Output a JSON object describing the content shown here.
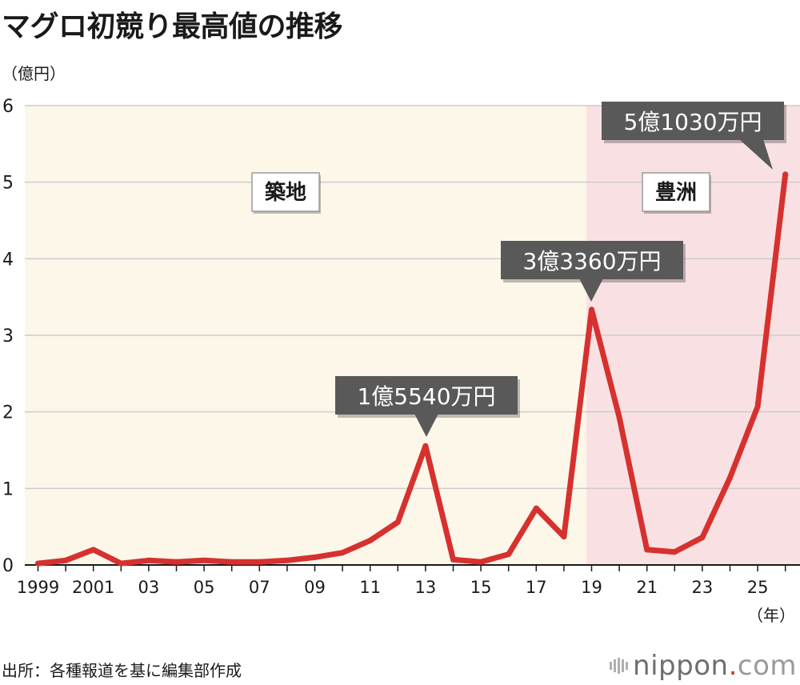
{
  "title": "マグロ初競り最高値の推移",
  "source": "出所：各種報道を基に編集部作成",
  "brand": {
    "name": "nippon",
    "dot": ".",
    "tld": "com"
  },
  "colors": {
    "line": "#d7312f",
    "tsukiji_bg": "#fdf7ea",
    "toyosu_bg": "#f9e1e3",
    "callout_bg": "#595959",
    "grid": "#cccccc"
  },
  "chart_data": {
    "type": "line",
    "title": "マグロ初競り最高値の推移",
    "ylabel": "（億円）",
    "xlabel": "（年）",
    "ylim": [
      0,
      6
    ],
    "yticks": [
      "0",
      "1",
      "2",
      "3",
      "4",
      "5",
      "6"
    ],
    "xtick_labels": [
      {
        "year": 1999,
        "label": "1999"
      },
      {
        "year": 2001,
        "label": "2001"
      },
      {
        "year": 2003,
        "label": "03"
      },
      {
        "year": 2005,
        "label": "05"
      },
      {
        "year": 2007,
        "label": "07"
      },
      {
        "year": 2009,
        "label": "09"
      },
      {
        "year": 2011,
        "label": "11"
      },
      {
        "year": 2013,
        "label": "13"
      },
      {
        "year": 2015,
        "label": "15"
      },
      {
        "year": 2017,
        "label": "17"
      },
      {
        "year": 2019,
        "label": "19"
      },
      {
        "year": 2021,
        "label": "21"
      },
      {
        "year": 2023,
        "label": "23"
      },
      {
        "year": 2025,
        "label": "25"
      }
    ],
    "x": [
      1999,
      2000,
      2001,
      2002,
      2003,
      2004,
      2005,
      2006,
      2007,
      2008,
      2009,
      2010,
      2011,
      2012,
      2013,
      2014,
      2015,
      2016,
      2017,
      2018,
      2019,
      2020,
      2021,
      2022,
      2023,
      2024,
      2025,
      2026
    ],
    "values": [
      0.02,
      0.06,
      0.2,
      0.02,
      0.06,
      0.04,
      0.06,
      0.04,
      0.04,
      0.06,
      0.1,
      0.16,
      0.32,
      0.56,
      1.554,
      0.07,
      0.04,
      0.14,
      0.74,
      0.37,
      3.336,
      1.93,
      0.2,
      0.17,
      0.36,
      1.14,
      2.07,
      5.103
    ],
    "regions": [
      {
        "label": "築地",
        "from": 1999,
        "to": 2018
      },
      {
        "label": "豊洲",
        "from": 2018,
        "to": 2026
      }
    ],
    "annotations": [
      {
        "x": 2013,
        "y": 1.554,
        "label": "1億5540万円"
      },
      {
        "x": 2019,
        "y": 3.336,
        "label": "3億3360万円"
      },
      {
        "x": 2026,
        "y": 5.103,
        "label": "5億1030万円"
      }
    ],
    "grid": true,
    "legend": "none"
  }
}
